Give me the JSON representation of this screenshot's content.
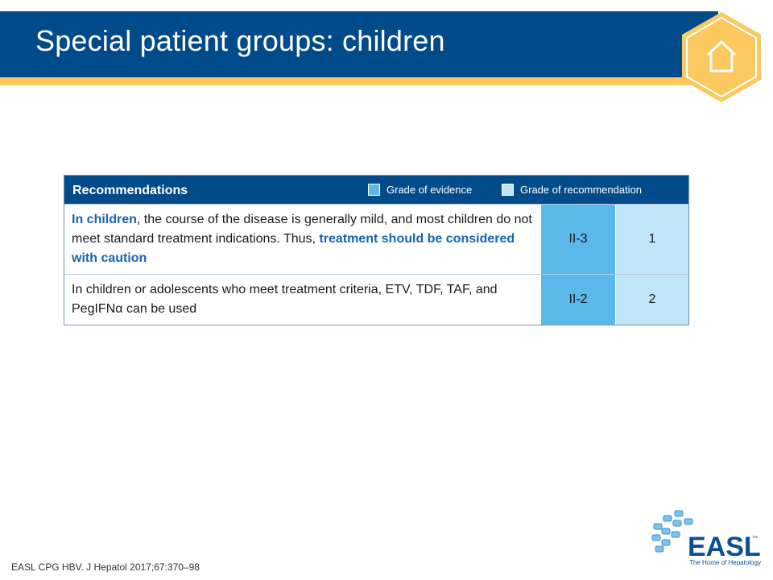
{
  "header": {
    "title": "Special patient groups: children",
    "home_icon": "home-icon"
  },
  "table": {
    "heading": "Recommendations",
    "legend": {
      "evidence_label": "Grade of evidence",
      "recommendation_label": "Grade of recommendation"
    },
    "rows": [
      {
        "segments": [
          {
            "text": "In children",
            "highlight": true
          },
          {
            "text": ", the course of the disease is generally mild, and most children do not meet standard treatment indications. Thus, ",
            "highlight": false
          },
          {
            "text": "treatment should be considered with caution",
            "highlight": true
          }
        ],
        "grade_evidence": "II-3",
        "grade_recommendation": "1"
      },
      {
        "segments": [
          {
            "text": "In children or adolescents who meet treatment criteria, ETV, TDF, TAF, and PegIFN",
            "highlight": false
          },
          {
            "text": "α",
            "highlight": false
          },
          {
            "text": " can be used",
            "highlight": false
          }
        ],
        "grade_evidence": "II-2",
        "grade_recommendation": "2"
      }
    ]
  },
  "footer": {
    "citation": "EASL CPG HBV. J Hepatol 2017;67:370–98",
    "logo_text": "EASL",
    "logo_tagline": "The Home of Hepatology",
    "logo_tm": "™"
  },
  "colors": {
    "header_blue": "#024b8a",
    "accent_yellow": "#fbc95f",
    "evidence_blue": "#5ab8ea",
    "recommendation_blue": "#bfe5f7",
    "highlight_text": "#1565b4"
  }
}
